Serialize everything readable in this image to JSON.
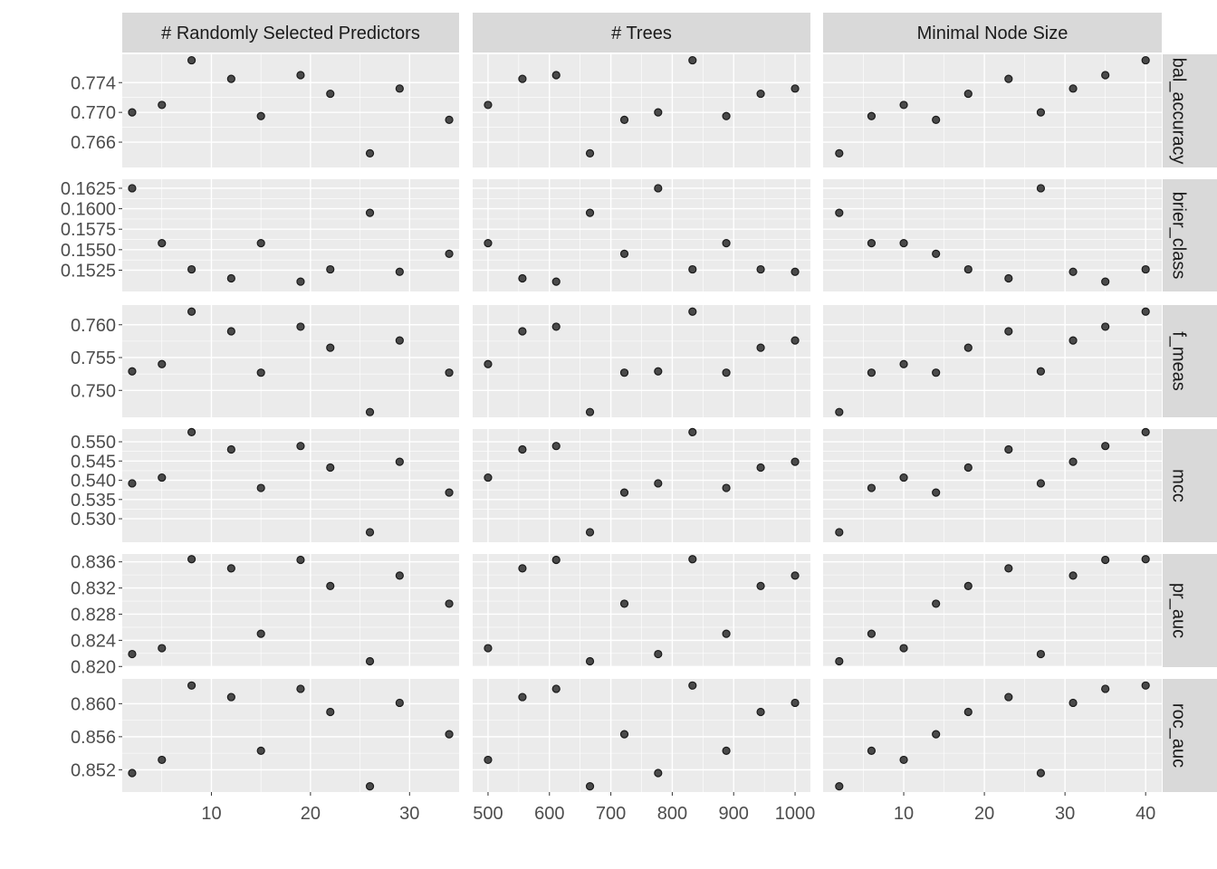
{
  "chart_data": {
    "type": "scatter",
    "facet_columns": [
      {
        "label": "# Randomly Selected Predictors",
        "xlim": [
          1,
          35
        ],
        "breaks": [
          10,
          20,
          30
        ]
      },
      {
        "label": "# Trees",
        "xlim": [
          475,
          1025
        ],
        "breaks": [
          500,
          600,
          700,
          800,
          900,
          1000
        ]
      },
      {
        "label": "Minimal Node Size",
        "xlim": [
          0,
          42
        ],
        "breaks": [
          10,
          20,
          30,
          40
        ]
      }
    ],
    "facet_rows": [
      {
        "label": "bal_accuracy",
        "ylim": [
          0.7626,
          0.7778
        ],
        "breaks": [
          0.766,
          0.77,
          0.774
        ],
        "decimals": 3
      },
      {
        "label": "brier_class",
        "ylim": [
          0.1499,
          0.1636
        ],
        "breaks": [
          0.1525,
          0.155,
          0.1575,
          0.16,
          0.1625
        ],
        "decimals": 4
      },
      {
        "label": "f_meas",
        "ylim": [
          0.7459,
          0.763
        ],
        "breaks": [
          0.75,
          0.755,
          0.76
        ],
        "decimals": 3
      },
      {
        "label": "mcc",
        "ylim": [
          0.5239,
          0.5533
        ],
        "breaks": [
          0.53,
          0.535,
          0.54,
          0.545,
          0.55
        ],
        "decimals": 3
      },
      {
        "label": "pr_auc",
        "ylim": [
          0.8199,
          0.8372
        ],
        "breaks": [
          0.82,
          0.824,
          0.828,
          0.832,
          0.836
        ],
        "decimals": 3
      },
      {
        "label": "roc_auc",
        "ylim": [
          0.8493,
          0.863
        ],
        "breaks": [
          0.852,
          0.856,
          0.86
        ],
        "decimals": 3
      }
    ],
    "points": [
      {
        "mtry": 2,
        "trees": 777,
        "min_n": 27,
        "bal_accuracy": 0.77,
        "brier_class": 0.1625,
        "f_meas": 0.7529,
        "mcc": 0.5392,
        "pr_auc": 0.8219,
        "roc_auc": 0.8516
      },
      {
        "mtry": 5,
        "trees": 500,
        "min_n": 10,
        "bal_accuracy": 0.771,
        "brier_class": 0.1558,
        "f_meas": 0.754,
        "mcc": 0.5407,
        "pr_auc": 0.8228,
        "roc_auc": 0.8532
      },
      {
        "mtry": 8,
        "trees": 833,
        "min_n": 40,
        "bal_accuracy": 0.777,
        "brier_class": 0.1526,
        "f_meas": 0.762,
        "mcc": 0.5525,
        "pr_auc": 0.8364,
        "roc_auc": 0.8622
      },
      {
        "mtry": 12,
        "trees": 556,
        "min_n": 23,
        "bal_accuracy": 0.7745,
        "brier_class": 0.1515,
        "f_meas": 0.759,
        "mcc": 0.548,
        "pr_auc": 0.835,
        "roc_auc": 0.8608
      },
      {
        "mtry": 15,
        "trees": 888,
        "min_n": 6,
        "bal_accuracy": 0.7695,
        "brier_class": 0.1558,
        "f_meas": 0.7527,
        "mcc": 0.538,
        "pr_auc": 0.825,
        "roc_auc": 0.8543
      },
      {
        "mtry": 19,
        "trees": 611,
        "min_n": 35,
        "bal_accuracy": 0.775,
        "brier_class": 0.1511,
        "f_meas": 0.7597,
        "mcc": 0.5489,
        "pr_auc": 0.8363,
        "roc_auc": 0.8618
      },
      {
        "mtry": 22,
        "trees": 944,
        "min_n": 18,
        "bal_accuracy": 0.7725,
        "brier_class": 0.1526,
        "f_meas": 0.7565,
        "mcc": 0.5433,
        "pr_auc": 0.8323,
        "roc_auc": 0.859
      },
      {
        "mtry": 26,
        "trees": 666,
        "min_n": 2,
        "bal_accuracy": 0.7645,
        "brier_class": 0.1595,
        "f_meas": 0.7467,
        "mcc": 0.5265,
        "pr_auc": 0.8208,
        "roc_auc": 0.85
      },
      {
        "mtry": 29,
        "trees": 1000,
        "min_n": 31,
        "bal_accuracy": 0.7732,
        "brier_class": 0.1523,
        "f_meas": 0.7576,
        "mcc": 0.5448,
        "pr_auc": 0.8339,
        "roc_auc": 0.8601
      },
      {
        "mtry": 34,
        "trees": 722,
        "min_n": 14,
        "bal_accuracy": 0.769,
        "brier_class": 0.1545,
        "f_meas": 0.7527,
        "mcc": 0.5368,
        "pr_auc": 0.8296,
        "roc_auc": 0.8563
      }
    ],
    "x_keys": [
      "mtry",
      "trees",
      "min_n"
    ],
    "grid": true
  }
}
